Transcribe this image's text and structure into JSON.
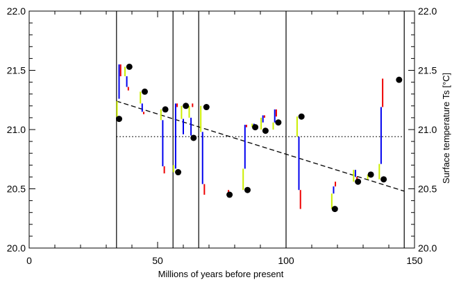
{
  "chart_data": {
    "type": "scatter",
    "title": "",
    "xlabel": "Millions of years before present",
    "ylabel": "Surface temperature Ts [°C]",
    "xlim": [
      0,
      150
    ],
    "ylim": [
      20.0,
      22.0
    ],
    "xticks": [
      "0",
      "50",
      "100",
      "150"
    ],
    "yticks_left": [
      "20.0",
      "20.5",
      "21.0",
      "21.5",
      "22.0"
    ],
    "yticks_right": [
      "20.0",
      "20.5",
      "21.0",
      "21.5",
      "22.0"
    ],
    "vertical_lines_x": [
      34,
      56,
      66,
      100,
      146
    ],
    "points": [
      {
        "x": 35,
        "y": 21.09
      },
      {
        "x": 39,
        "y": 21.53
      },
      {
        "x": 45,
        "y": 21.32
      },
      {
        "x": 53,
        "y": 21.17
      },
      {
        "x": 58,
        "y": 20.64
      },
      {
        "x": 61,
        "y": 21.2
      },
      {
        "x": 64,
        "y": 20.93
      },
      {
        "x": 69,
        "y": 21.19
      },
      {
        "x": 78,
        "y": 20.45
      },
      {
        "x": 85,
        "y": 20.49
      },
      {
        "x": 88,
        "y": 21.02
      },
      {
        "x": 92,
        "y": 20.99
      },
      {
        "x": 97,
        "y": 21.06
      },
      {
        "x": 106,
        "y": 21.11
      },
      {
        "x": 119,
        "y": 20.33
      },
      {
        "x": 128,
        "y": 20.56
      },
      {
        "x": 133,
        "y": 20.62
      },
      {
        "x": 138,
        "y": 20.58
      },
      {
        "x": 144,
        "y": 21.42
      }
    ],
    "segments": [
      {
        "x": 34.2,
        "y1": 21.24,
        "y2": 21.09,
        "color": "#ccee00"
      },
      {
        "x": 35.0,
        "y1": 21.55,
        "y2": 21.26,
        "color": "#0000ee"
      },
      {
        "x": 35.6,
        "y1": 21.55,
        "y2": 21.45,
        "color": "#ee0000"
      },
      {
        "x": 37.3,
        "y1": 21.53,
        "y2": 21.45,
        "color": "#ccee00"
      },
      {
        "x": 38.0,
        "y1": 21.45,
        "y2": 21.36,
        "color": "#0000ee"
      },
      {
        "x": 38.6,
        "y1": 21.36,
        "y2": 21.33,
        "color": "#ee0000"
      },
      {
        "x": 43.3,
        "y1": 21.32,
        "y2": 21.22,
        "color": "#ccee00"
      },
      {
        "x": 44.0,
        "y1": 21.22,
        "y2": 21.15,
        "color": "#0000ee"
      },
      {
        "x": 44.6,
        "y1": 21.15,
        "y2": 21.13,
        "color": "#ee0000"
      },
      {
        "x": 51.3,
        "y1": 21.17,
        "y2": 21.08,
        "color": "#ccee00"
      },
      {
        "x": 52.0,
        "y1": 21.08,
        "y2": 20.69,
        "color": "#0000ee"
      },
      {
        "x": 52.6,
        "y1": 20.69,
        "y2": 20.63,
        "color": "#ee0000"
      },
      {
        "x": 56.2,
        "y1": 20.7,
        "y2": 20.64,
        "color": "#ccee00"
      },
      {
        "x": 57.0,
        "y1": 21.22,
        "y2": 20.67,
        "color": "#0000ee"
      },
      {
        "x": 57.6,
        "y1": 21.22,
        "y2": 21.19,
        "color": "#ee0000"
      },
      {
        "x": 59.3,
        "y1": 21.2,
        "y2": 21.09,
        "color": "#ccee00"
      },
      {
        "x": 60.0,
        "y1": 21.09,
        "y2": 20.96,
        "color": "#0000ee"
      },
      {
        "x": 62.3,
        "y1": 21.2,
        "y2": 21.1,
        "color": "#ccee00"
      },
      {
        "x": 63.0,
        "y1": 21.1,
        "y2": 20.95,
        "color": "#0000ee"
      },
      {
        "x": 63.6,
        "y1": 21.22,
        "y2": 21.19,
        "color": "#ee0000"
      },
      {
        "x": 66.8,
        "y1": 21.2,
        "y2": 20.98,
        "color": "#ccee00"
      },
      {
        "x": 67.5,
        "y1": 20.98,
        "y2": 20.54,
        "color": "#0000ee"
      },
      {
        "x": 68.2,
        "y1": 20.54,
        "y2": 20.45,
        "color": "#ee0000"
      },
      {
        "x": 77.6,
        "y1": 20.49,
        "y2": 20.45,
        "color": "#ee0000"
      },
      {
        "x": 83.3,
        "y1": 20.67,
        "y2": 20.49,
        "color": "#ccee00"
      },
      {
        "x": 84.0,
        "y1": 21.04,
        "y2": 20.67,
        "color": "#0000ee"
      },
      {
        "x": 84.6,
        "y1": 21.04,
        "y2": 21.02,
        "color": "#ee0000"
      },
      {
        "x": 86.8,
        "y1": 21.05,
        "y2": 21.02,
        "color": "#ccee00"
      },
      {
        "x": 87.5,
        "y1": 21.05,
        "y2": 21.01,
        "color": "#0000ee"
      },
      {
        "x": 90.3,
        "y1": 21.1,
        "y2": 21.0,
        "color": "#ccee00"
      },
      {
        "x": 91.0,
        "y1": 21.12,
        "y2": 21.06,
        "color": "#0000ee"
      },
      {
        "x": 91.6,
        "y1": 21.12,
        "y2": 21.1,
        "color": "#ee0000"
      },
      {
        "x": 95.0,
        "y1": 21.06,
        "y2": 21.0,
        "color": "#ccee00"
      },
      {
        "x": 95.6,
        "y1": 21.17,
        "y2": 21.06,
        "color": "#0000ee"
      },
      {
        "x": 96.2,
        "y1": 21.17,
        "y2": 21.11,
        "color": "#ee0000"
      },
      {
        "x": 104.3,
        "y1": 21.11,
        "y2": 20.94,
        "color": "#ccee00"
      },
      {
        "x": 105.0,
        "y1": 20.94,
        "y2": 20.49,
        "color": "#0000ee"
      },
      {
        "x": 105.6,
        "y1": 20.49,
        "y2": 20.33,
        "color": "#ee0000"
      },
      {
        "x": 117.8,
        "y1": 20.46,
        "y2": 20.33,
        "color": "#ccee00"
      },
      {
        "x": 118.5,
        "y1": 20.52,
        "y2": 20.46,
        "color": "#0000ee"
      },
      {
        "x": 119.2,
        "y1": 20.56,
        "y2": 20.52,
        "color": "#ee0000"
      },
      {
        "x": 126.3,
        "y1": 20.66,
        "y2": 20.56,
        "color": "#ccee00"
      },
      {
        "x": 127.0,
        "y1": 20.66,
        "y2": 20.6,
        "color": "#0000ee"
      },
      {
        "x": 127.6,
        "y1": 20.6,
        "y2": 20.57,
        "color": "#ee0000"
      },
      {
        "x": 131.8,
        "y1": 20.62,
        "y2": 20.58,
        "color": "#ccee00"
      },
      {
        "x": 136.3,
        "y1": 20.71,
        "y2": 20.58,
        "color": "#ccee00"
      },
      {
        "x": 137.0,
        "y1": 21.19,
        "y2": 20.71,
        "color": "#0000ee"
      },
      {
        "x": 137.6,
        "y1": 21.43,
        "y2": 21.19,
        "color": "#ee0000"
      }
    ],
    "trend_line": {
      "style": "dashed",
      "x": [
        34,
        146
      ],
      "y": [
        21.24,
        20.48
      ]
    },
    "reference_line": {
      "style": "dotted",
      "y": 20.94
    },
    "grid": false,
    "legend": "none"
  }
}
